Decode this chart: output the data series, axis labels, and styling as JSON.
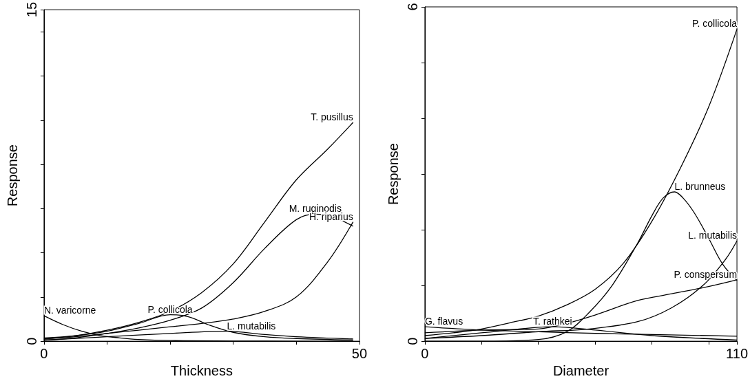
{
  "chart_data": [
    {
      "type": "line",
      "xlabel": "Thickness",
      "ylabel": "Response",
      "xlim": [
        0,
        50
      ],
      "ylim": [
        0,
        15
      ],
      "xticks": [
        0,
        {
          "value": 10,
          "label": null
        },
        {
          "value": 20,
          "label": null
        },
        {
          "value": 30,
          "label": null
        },
        {
          "value": 40,
          "label": null
        },
        50
      ],
      "yticks": [
        0,
        {
          "value": 2,
          "label": null
        },
        {
          "value": 4,
          "label": null
        },
        {
          "value": 6,
          "label": null
        },
        {
          "value": 8,
          "label": null
        },
        {
          "value": 10,
          "label": null
        },
        {
          "value": 12,
          "label": null
        },
        {
          "value": 14,
          "label": null
        },
        15
      ],
      "series": [
        {
          "name": "T. pusillus",
          "color": "#000000",
          "x": [
            0,
            5,
            10,
            15,
            20,
            25,
            30,
            35,
            40,
            45,
            49
          ],
          "values": [
            0.1,
            0.25,
            0.5,
            0.85,
            1.35,
            2.2,
            3.5,
            5.4,
            7.3,
            8.7,
            9.9
          ]
        },
        {
          "name": "M. ruginodis",
          "color": "#000000",
          "x": [
            0,
            5,
            10,
            15,
            20,
            25,
            30,
            35,
            40,
            43,
            45,
            49
          ],
          "values": [
            0.05,
            0.15,
            0.35,
            0.6,
            0.95,
            1.5,
            2.65,
            4.2,
            5.5,
            5.75,
            5.7,
            5.2
          ]
        },
        {
          "name": "H. riparius",
          "color": "#000000",
          "x": [
            0,
            5,
            10,
            15,
            20,
            25,
            30,
            35,
            40,
            45,
            49
          ],
          "values": [
            0.1,
            0.2,
            0.35,
            0.5,
            0.65,
            0.8,
            1.0,
            1.35,
            2.0,
            3.6,
            5.4
          ]
        },
        {
          "name": "N. varicorne",
          "color": "#000000",
          "x": [
            0,
            3,
            6,
            9,
            12,
            15,
            20,
            30,
            40,
            49
          ],
          "values": [
            1.15,
            0.75,
            0.45,
            0.25,
            0.15,
            0.08,
            0.03,
            0.01,
            0,
            0
          ]
        },
        {
          "name": "P. collicola",
          "color": "#000000",
          "x": [
            0,
            5,
            10,
            15,
            20,
            23,
            26,
            30,
            35,
            40,
            49
          ],
          "values": [
            0.15,
            0.25,
            0.45,
            0.8,
            1.2,
            1.1,
            0.75,
            0.4,
            0.2,
            0.12,
            0.05
          ]
        },
        {
          "name": "L. mutabilis",
          "color": "#000000",
          "x": [
            0,
            10,
            20,
            29,
            35,
            40,
            49
          ],
          "values": [
            0.05,
            0.2,
            0.35,
            0.45,
            0.3,
            0.2,
            0.1
          ]
        }
      ]
    },
    {
      "type": "line",
      "xlabel": "Diameter",
      "ylabel": "Response",
      "xlim": [
        0,
        110
      ],
      "ylim": [
        0,
        6
      ],
      "xticks": [
        0,
        {
          "value": 20,
          "label": null
        },
        {
          "value": 40,
          "label": null
        },
        {
          "value": 60,
          "label": null
        },
        {
          "value": 80,
          "label": null
        },
        {
          "value": 100,
          "label": null
        },
        110
      ],
      "yticks": [
        0,
        {
          "value": 1,
          "label": null
        },
        {
          "value": 2,
          "label": null
        },
        {
          "value": 3,
          "label": null
        },
        {
          "value": 4,
          "label": null
        },
        {
          "value": 5,
          "label": null
        },
        6
      ],
      "series": [
        {
          "name": "P. collicola",
          "color": "#000000",
          "x": [
            0,
            10,
            20,
            30,
            40,
            50,
            60,
            70,
            80,
            90,
            100,
            110
          ],
          "values": [
            0.1,
            0.15,
            0.22,
            0.33,
            0.45,
            0.65,
            0.93,
            1.4,
            2.15,
            3.1,
            4.2,
            5.6
          ]
        },
        {
          "name": "L. brunneus",
          "color": "#000000",
          "x": [
            0,
            20,
            40,
            50,
            58,
            66,
            75,
            80,
            84,
            88,
            91,
            95,
            100,
            105,
            110
          ],
          "values": [
            0,
            0,
            0.03,
            0.17,
            0.52,
            1.0,
            1.76,
            2.25,
            2.57,
            2.68,
            2.57,
            2.3,
            1.85,
            1.38,
            1.09
          ]
        },
        {
          "name": "L. mutabilis",
          "color": "#000000",
          "x": [
            0,
            20,
            40,
            58,
            75,
            87,
            98,
            106,
            110
          ],
          "values": [
            0.05,
            0.1,
            0.17,
            0.22,
            0.35,
            0.6,
            1.0,
            1.47,
            1.8
          ]
        },
        {
          "name": "P. conspersum",
          "color": "#000000",
          "x": [
            0,
            20,
            40,
            50,
            60,
            75,
            87,
            100,
            110
          ],
          "values": [
            0.15,
            0.2,
            0.22,
            0.32,
            0.47,
            0.73,
            0.85,
            0.98,
            1.1
          ]
        },
        {
          "name": "G. flavus",
          "color": "#000000",
          "x": [
            0,
            20,
            40,
            60,
            80,
            110
          ],
          "values": [
            0.26,
            0.2,
            0.17,
            0.14,
            0.12,
            0.09
          ]
        },
        {
          "name": "T. rathkei",
          "color": "#000000",
          "x": [
            0,
            20,
            40,
            45,
            60,
            80,
            110
          ],
          "values": [
            0.05,
            0.15,
            0.25,
            0.26,
            0.2,
            0.1,
            0.02
          ]
        }
      ]
    }
  ]
}
